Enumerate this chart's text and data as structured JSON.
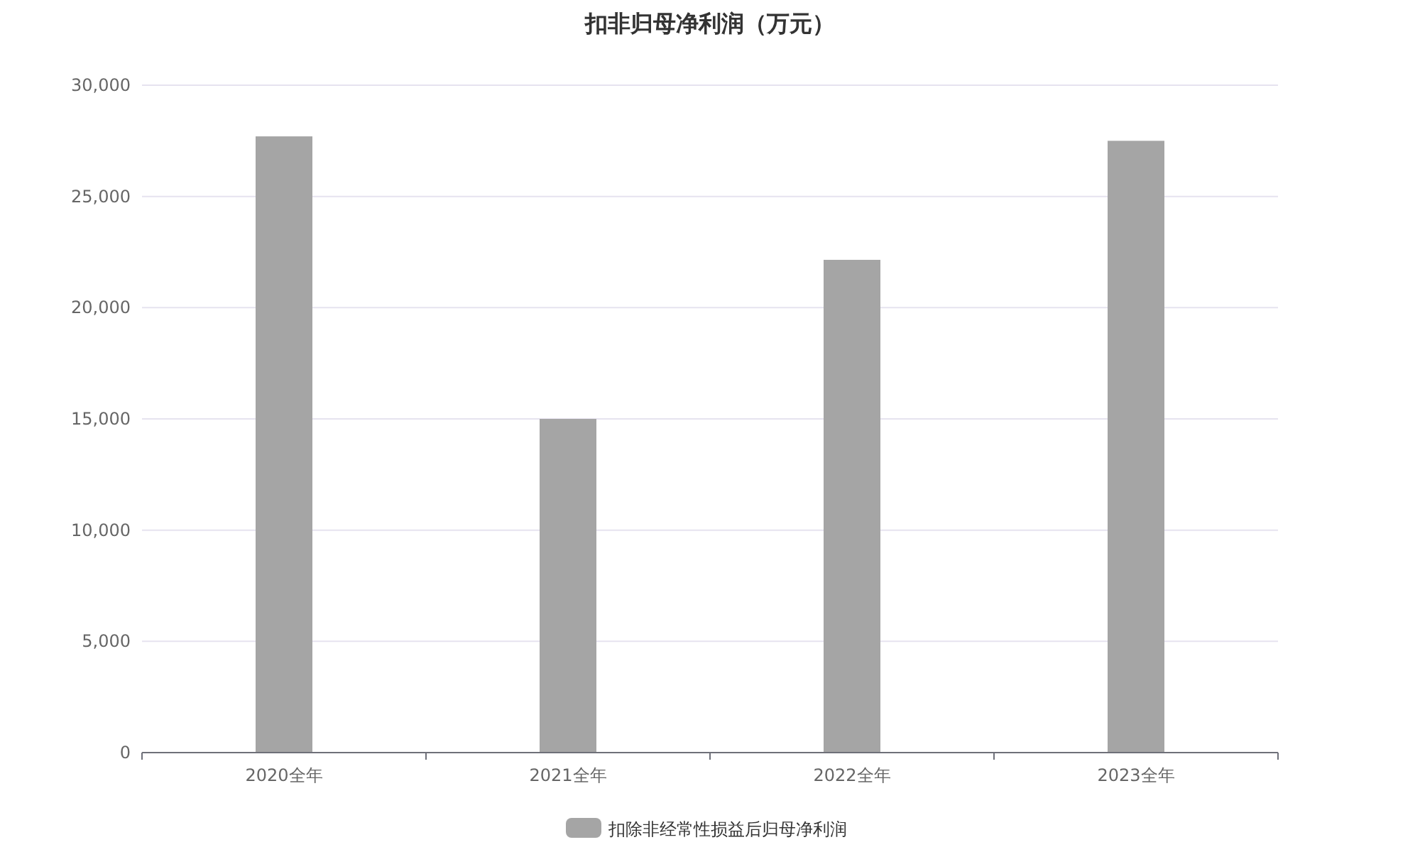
{
  "chart_data": {
    "type": "bar",
    "title": "扣非归母净利润（万元）",
    "categories": [
      "2020全年",
      "2021全年",
      "2022全年",
      "2023全年"
    ],
    "series": [
      {
        "name": "扣除非经常性损益后归母净利润",
        "color": "#a5a5a5",
        "values": [
          27700,
          15000,
          22150,
          27500
        ]
      }
    ],
    "ylim": [
      0,
      30000
    ],
    "yticks": [
      0,
      {
        "value": 5000,
        "label": "5,000"
      },
      {
        "value": 10000,
        "label": "10,000"
      },
      {
        "value": 15000,
        "label": "15,000"
      },
      {
        "value": 20000,
        "label": "20,000"
      },
      {
        "value": 25000,
        "label": "25,000"
      },
      {
        "value": 30000,
        "label": "30,000"
      }
    ],
    "grid": "y",
    "legend": "bottom"
  }
}
